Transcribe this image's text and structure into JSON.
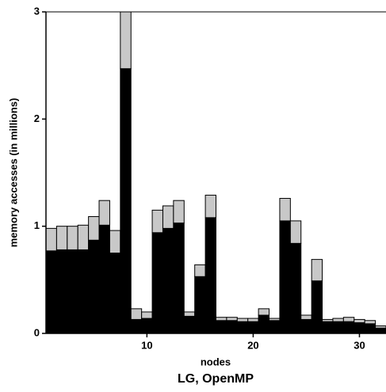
{
  "chart_data": {
    "type": "stacked_bar",
    "title": "LG, OpenMP",
    "xlabel": "nodes",
    "ylabel": "memory accesses (in millions)",
    "x": [
      1,
      2,
      3,
      4,
      5,
      6,
      7,
      8,
      9,
      10,
      11,
      12,
      13,
      14,
      15,
      16,
      17,
      18,
      19,
      20,
      21,
      22,
      23,
      24,
      25,
      26,
      27,
      28,
      29,
      30,
      31,
      32
    ],
    "series": [
      {
        "color": "#000000",
        "values": [
          0.77,
          0.78,
          0.78,
          0.78,
          0.87,
          1.01,
          0.75,
          2.47,
          0.13,
          0.14,
          0.94,
          0.98,
          1.03,
          0.16,
          0.53,
          1.08,
          0.12,
          0.12,
          0.11,
          0.11,
          0.17,
          0.12,
          1.05,
          0.84,
          0.13,
          0.49,
          0.11,
          0.11,
          0.11,
          0.1,
          0.09,
          0.05
        ]
      },
      {
        "color": "#c8c8c8",
        "values": [
          0.21,
          0.22,
          0.22,
          0.23,
          0.22,
          0.23,
          0.21,
          0.53,
          0.1,
          0.06,
          0.21,
          0.21,
          0.21,
          0.04,
          0.11,
          0.21,
          0.03,
          0.03,
          0.03,
          0.03,
          0.06,
          0.02,
          0.21,
          0.21,
          0.04,
          0.2,
          0.02,
          0.03,
          0.04,
          0.03,
          0.03,
          0.02
        ]
      }
    ],
    "xlim": [
      0.5,
      32.5
    ],
    "xticks": [
      10,
      20,
      30
    ],
    "ylim": [
      0,
      3
    ],
    "yticks": [
      0,
      1,
      2,
      3
    ]
  }
}
